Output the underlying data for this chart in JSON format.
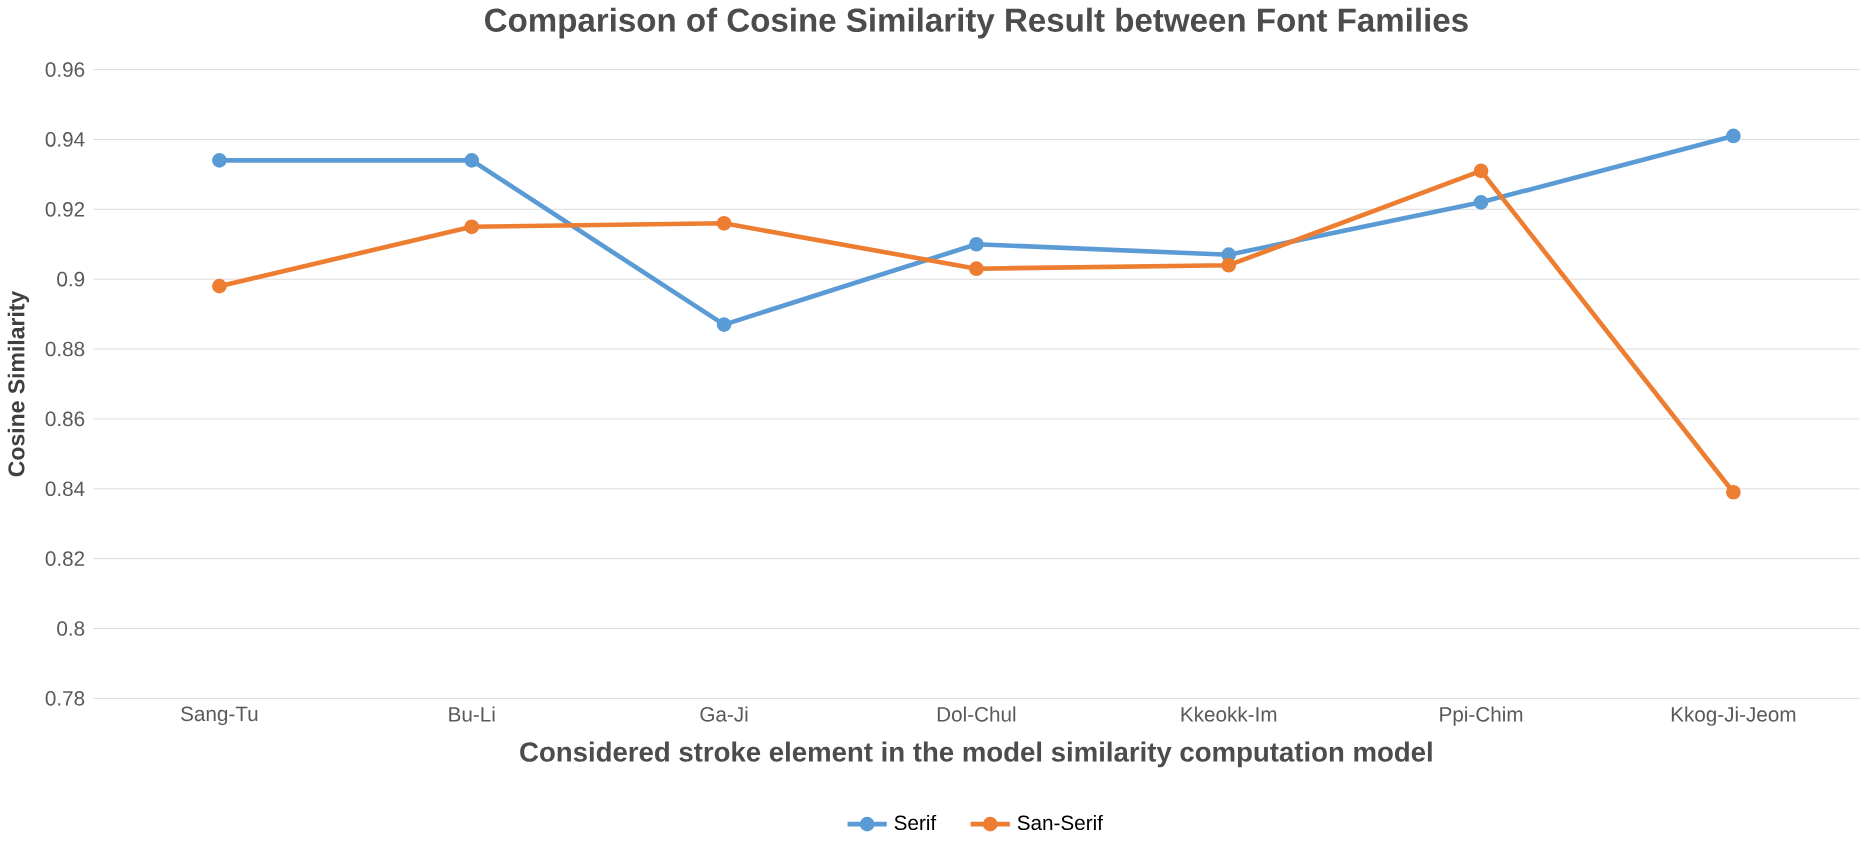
{
  "chart_data": {
    "type": "line",
    "title": "Comparison  of Cosine Similarity  Result between Font Families",
    "xlabel": "Considered stroke element in the model similarity computation model",
    "ylabel": "Cosine Similarity",
    "categories": [
      "Sang-Tu",
      "Bu-Li",
      "Ga-Ji",
      "Dol-Chul",
      "Kkeokk-Im",
      "Ppi-Chim",
      "Kkog-Ji-Jeom"
    ],
    "series": [
      {
        "name": "Serif",
        "color": "#5b9bd5",
        "values": [
          0.934,
          0.934,
          0.887,
          0.91,
          0.907,
          0.922,
          0.941
        ]
      },
      {
        "name": "San-Serif",
        "color": "#ed7d31",
        "values": [
          0.898,
          0.915,
          0.916,
          0.903,
          0.904,
          0.931,
          0.839
        ]
      }
    ],
    "ylim": [
      0.78,
      0.96
    ],
    "yticks": [
      0.78,
      0.8,
      0.82,
      0.84,
      0.86,
      0.88,
      0.9,
      0.92,
      0.94,
      0.96
    ],
    "grid": "y",
    "legend": "bottom",
    "marker": "circle",
    "line_style": "solid"
  }
}
